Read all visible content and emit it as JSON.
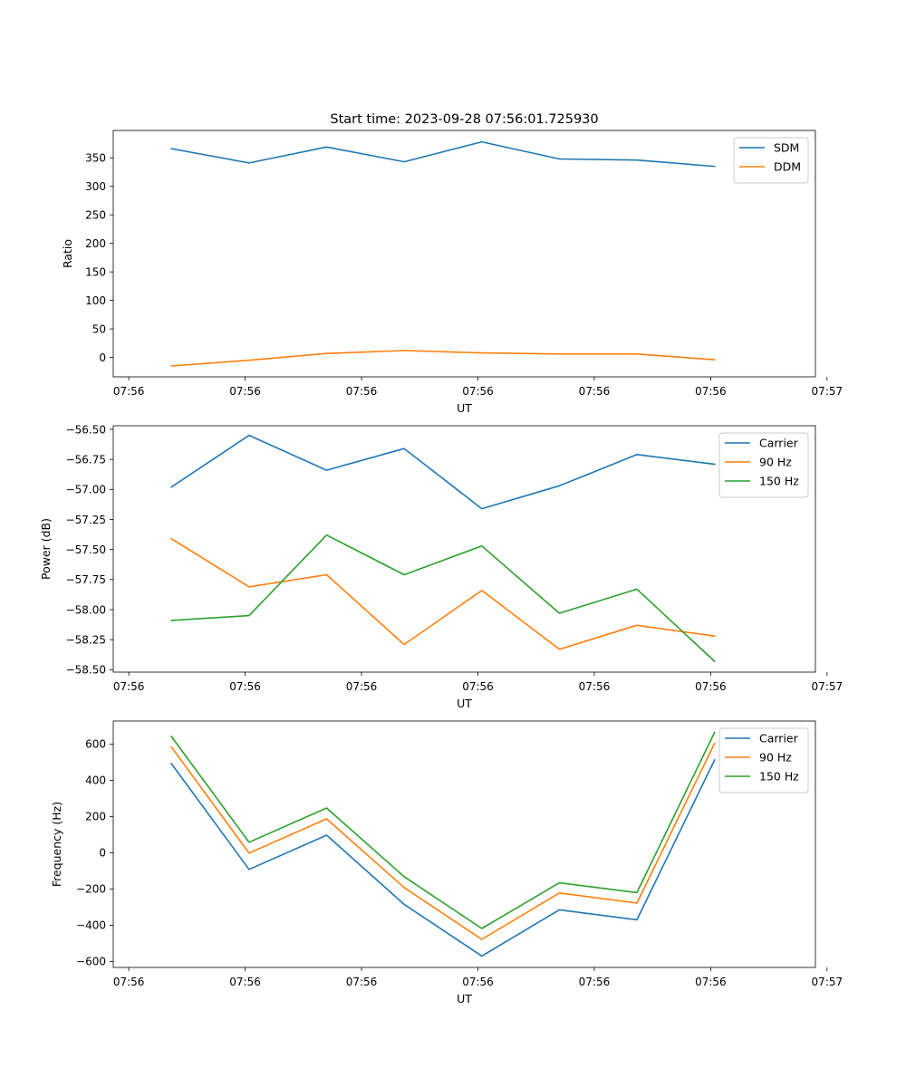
{
  "chart_data": [
    {
      "type": "line",
      "title": "Start time: 2023-09-28 07:56:01.725930",
      "xlabel": "UT",
      "ylabel": "Ratio",
      "x": [
        1,
        2,
        3,
        4,
        5,
        6,
        7,
        8
      ],
      "xlim": [
        0.25,
        9.3
      ],
      "x_ticks": [
        0.45,
        1.95,
        3.45,
        4.95,
        6.45,
        7.95,
        9.45
      ],
      "x_tick_labels": [
        "07:56",
        "07:56",
        "07:56",
        "07:56",
        "07:56",
        "07:56",
        "07:57"
      ],
      "ylim": [
        -34,
        398
      ],
      "y_ticks": [
        0,
        50,
        100,
        150,
        200,
        250,
        300,
        350
      ],
      "y_tick_labels": [
        "0",
        "50",
        "100",
        "150",
        "200",
        "250",
        "300",
        "350"
      ],
      "legend": "top-right",
      "series": [
        {
          "name": "SDM",
          "color": "#1f77b4",
          "values": [
            366,
            341,
            369,
            343,
            378,
            348,
            346,
            335
          ]
        },
        {
          "name": "DDM",
          "color": "#ff7f0e",
          "values": [
            -15,
            -5,
            7,
            12,
            8,
            6,
            6,
            -4
          ]
        }
      ]
    },
    {
      "type": "line",
      "title": "",
      "xlabel": "UT",
      "ylabel": "Power (dB)",
      "x": [
        1,
        2,
        3,
        4,
        5,
        6,
        7,
        8
      ],
      "xlim": [
        0.25,
        9.3
      ],
      "x_ticks": [
        0.45,
        1.95,
        3.45,
        4.95,
        6.45,
        7.95,
        9.45
      ],
      "x_tick_labels": [
        "07:56",
        "07:56",
        "07:56",
        "07:56",
        "07:56",
        "07:56",
        "07:57"
      ],
      "ylim": [
        -58.52,
        -56.47
      ],
      "y_ticks": [
        -58.5,
        -58.25,
        -58.0,
        -57.75,
        -57.5,
        -57.25,
        -57.0,
        -56.75,
        -56.5
      ],
      "y_tick_labels": [
        "−58.50",
        "−58.25",
        "−58.00",
        "−57.75",
        "−57.50",
        "−57.25",
        "−57.00",
        "−56.75",
        "−56.50"
      ],
      "legend": "top-right",
      "series": [
        {
          "name": "Carrier",
          "color": "#1f77b4",
          "values": [
            -56.98,
            -56.55,
            -56.84,
            -56.66,
            -57.16,
            -56.97,
            -56.71,
            -56.79
          ]
        },
        {
          "name": "90 Hz",
          "color": "#ff7f0e",
          "values": [
            -57.41,
            -57.81,
            -57.71,
            -58.29,
            -57.84,
            -58.33,
            -58.13,
            -58.22
          ]
        },
        {
          "name": "150 Hz",
          "color": "#2ca02c",
          "values": [
            -58.09,
            -58.05,
            -57.38,
            -57.71,
            -57.47,
            -58.03,
            -57.83,
            -58.43
          ]
        }
      ]
    },
    {
      "type": "line",
      "title": "",
      "xlabel": "UT",
      "ylabel": "Frequency (Hz)",
      "x": [
        1,
        2,
        3,
        4,
        5,
        6,
        7,
        8
      ],
      "xlim": [
        0.25,
        9.3
      ],
      "x_ticks": [
        0.45,
        1.95,
        3.45,
        4.95,
        6.45,
        7.95,
        9.45
      ],
      "x_tick_labels": [
        "07:56",
        "07:56",
        "07:56",
        "07:56",
        "07:56",
        "07:56",
        "07:57"
      ],
      "ylim": [
        -633,
        727
      ],
      "y_ticks": [
        -600,
        -400,
        -200,
        0,
        200,
        400,
        600
      ],
      "y_tick_labels": [
        "−600",
        "−400",
        "−200",
        "0",
        "200",
        "400",
        "600"
      ],
      "legend": "top-right",
      "series": [
        {
          "name": "Carrier",
          "color": "#1f77b4",
          "values": [
            492,
            -92,
            97,
            -285,
            -570,
            -315,
            -370,
            512
          ]
        },
        {
          "name": "90 Hz",
          "color": "#ff7f0e",
          "values": [
            584,
            -2,
            187,
            -192,
            -478,
            -222,
            -278,
            604
          ]
        },
        {
          "name": "150 Hz",
          "color": "#2ca02c",
          "values": [
            642,
            58,
            247,
            -132,
            -418,
            -166,
            -220,
            664
          ]
        }
      ]
    }
  ]
}
